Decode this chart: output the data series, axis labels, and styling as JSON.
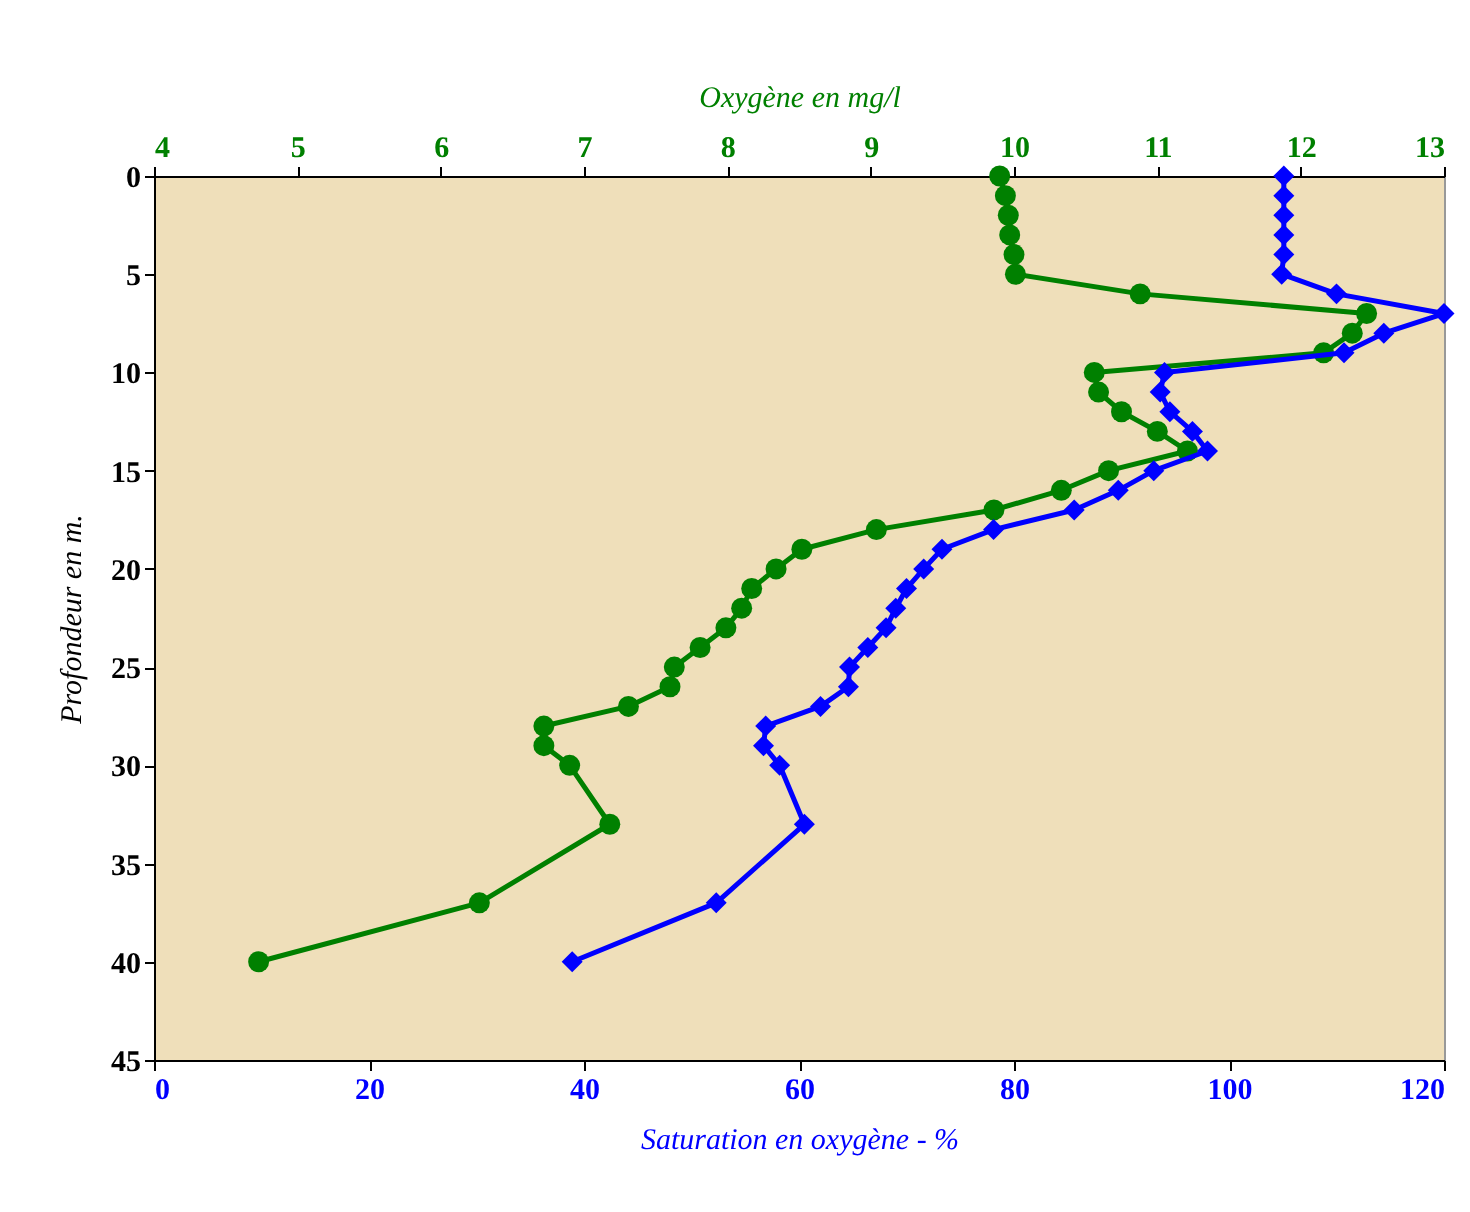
{
  "chart_data": {
    "type": "line",
    "xlabel": "Saturation en oxygène - %",
    "x2label": "Oxygène en mg/l",
    "ylabel": "Profondeur en m.",
    "xlim": [
      0,
      120
    ],
    "xticks": [
      0,
      20,
      40,
      60,
      80,
      100,
      120
    ],
    "x2lim": [
      4,
      13
    ],
    "x2ticks": [
      4,
      5,
      6,
      7,
      8,
      9,
      10,
      11,
      12,
      13
    ],
    "ylim": [
      45,
      0
    ],
    "yticks": [
      0,
      5,
      10,
      15,
      20,
      25,
      30,
      35,
      40,
      45
    ],
    "grid": false,
    "line_style": "solid",
    "series": [
      {
        "color": "#008000",
        "axis": "x2",
        "marker": "circle",
        "x": [
          9.9,
          9.94,
          9.96,
          9.97,
          10.0,
          10.01,
          10.88,
          12.46,
          12.36,
          12.16,
          10.56,
          10.59,
          10.75,
          11.0,
          11.21,
          10.66,
          10.33,
          9.86,
          9.04,
          8.52,
          8.34,
          8.17,
          8.1,
          7.99,
          7.81,
          7.63,
          7.6,
          7.31,
          6.72,
          6.72,
          6.9,
          7.18,
          6.27,
          4.73
        ],
        "values": [
          0,
          1,
          2,
          3,
          4,
          5,
          6,
          7,
          8,
          9,
          10,
          11,
          12,
          13,
          14,
          15,
          16,
          17,
          18,
          19,
          20,
          21,
          22,
          23,
          24,
          25,
          26,
          27,
          28,
          29,
          30,
          33,
          37,
          40
        ]
      },
      {
        "color": "#0000ff",
        "marker": "diamond",
        "x": [
          105.1,
          105.1,
          105.1,
          105.1,
          105.1,
          104.9,
          110.0,
          120.0,
          114.4,
          110.7,
          94.0,
          93.6,
          94.5,
          96.6,
          98.0,
          93.0,
          89.7,
          85.6,
          78.1,
          73.3,
          71.6,
          70.0,
          69.0,
          68.1,
          66.4,
          64.7,
          64.6,
          62.0,
          56.9,
          56.7,
          58.2,
          60.5,
          52.3,
          38.9
        ],
        "values": [
          0,
          1,
          2,
          3,
          4,
          5,
          6,
          7,
          8,
          9,
          10,
          11,
          12,
          13,
          14,
          15,
          16,
          17,
          18,
          19,
          20,
          21,
          22,
          23,
          24,
          25,
          26,
          27,
          28,
          29,
          30,
          33,
          37,
          40
        ]
      }
    ]
  }
}
